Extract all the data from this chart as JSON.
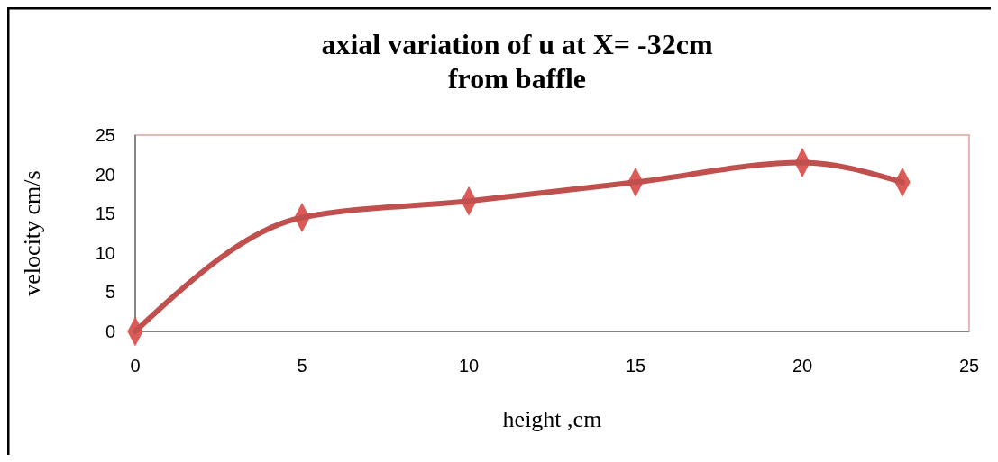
{
  "chart_data": {
    "type": "line",
    "title": "axial variation of u at X= -32cm\nfrom baffle",
    "xlabel": "height ,cm",
    "ylabel": "velocity cm/s",
    "x": [
      0,
      5,
      10,
      15,
      20,
      23
    ],
    "series": [
      {
        "color": "#c0504d",
        "values": [
          0,
          14.5,
          16.6,
          19,
          21.5,
          19
        ]
      }
    ],
    "xlim": [
      0,
      25
    ],
    "xticks": [
      0,
      5,
      10,
      15,
      20,
      25
    ],
    "ylim": [
      0,
      25
    ],
    "yticks": [
      0,
      5,
      10,
      15,
      20,
      25
    ],
    "grid": false,
    "marker": "diamond",
    "line_style": "solid"
  }
}
